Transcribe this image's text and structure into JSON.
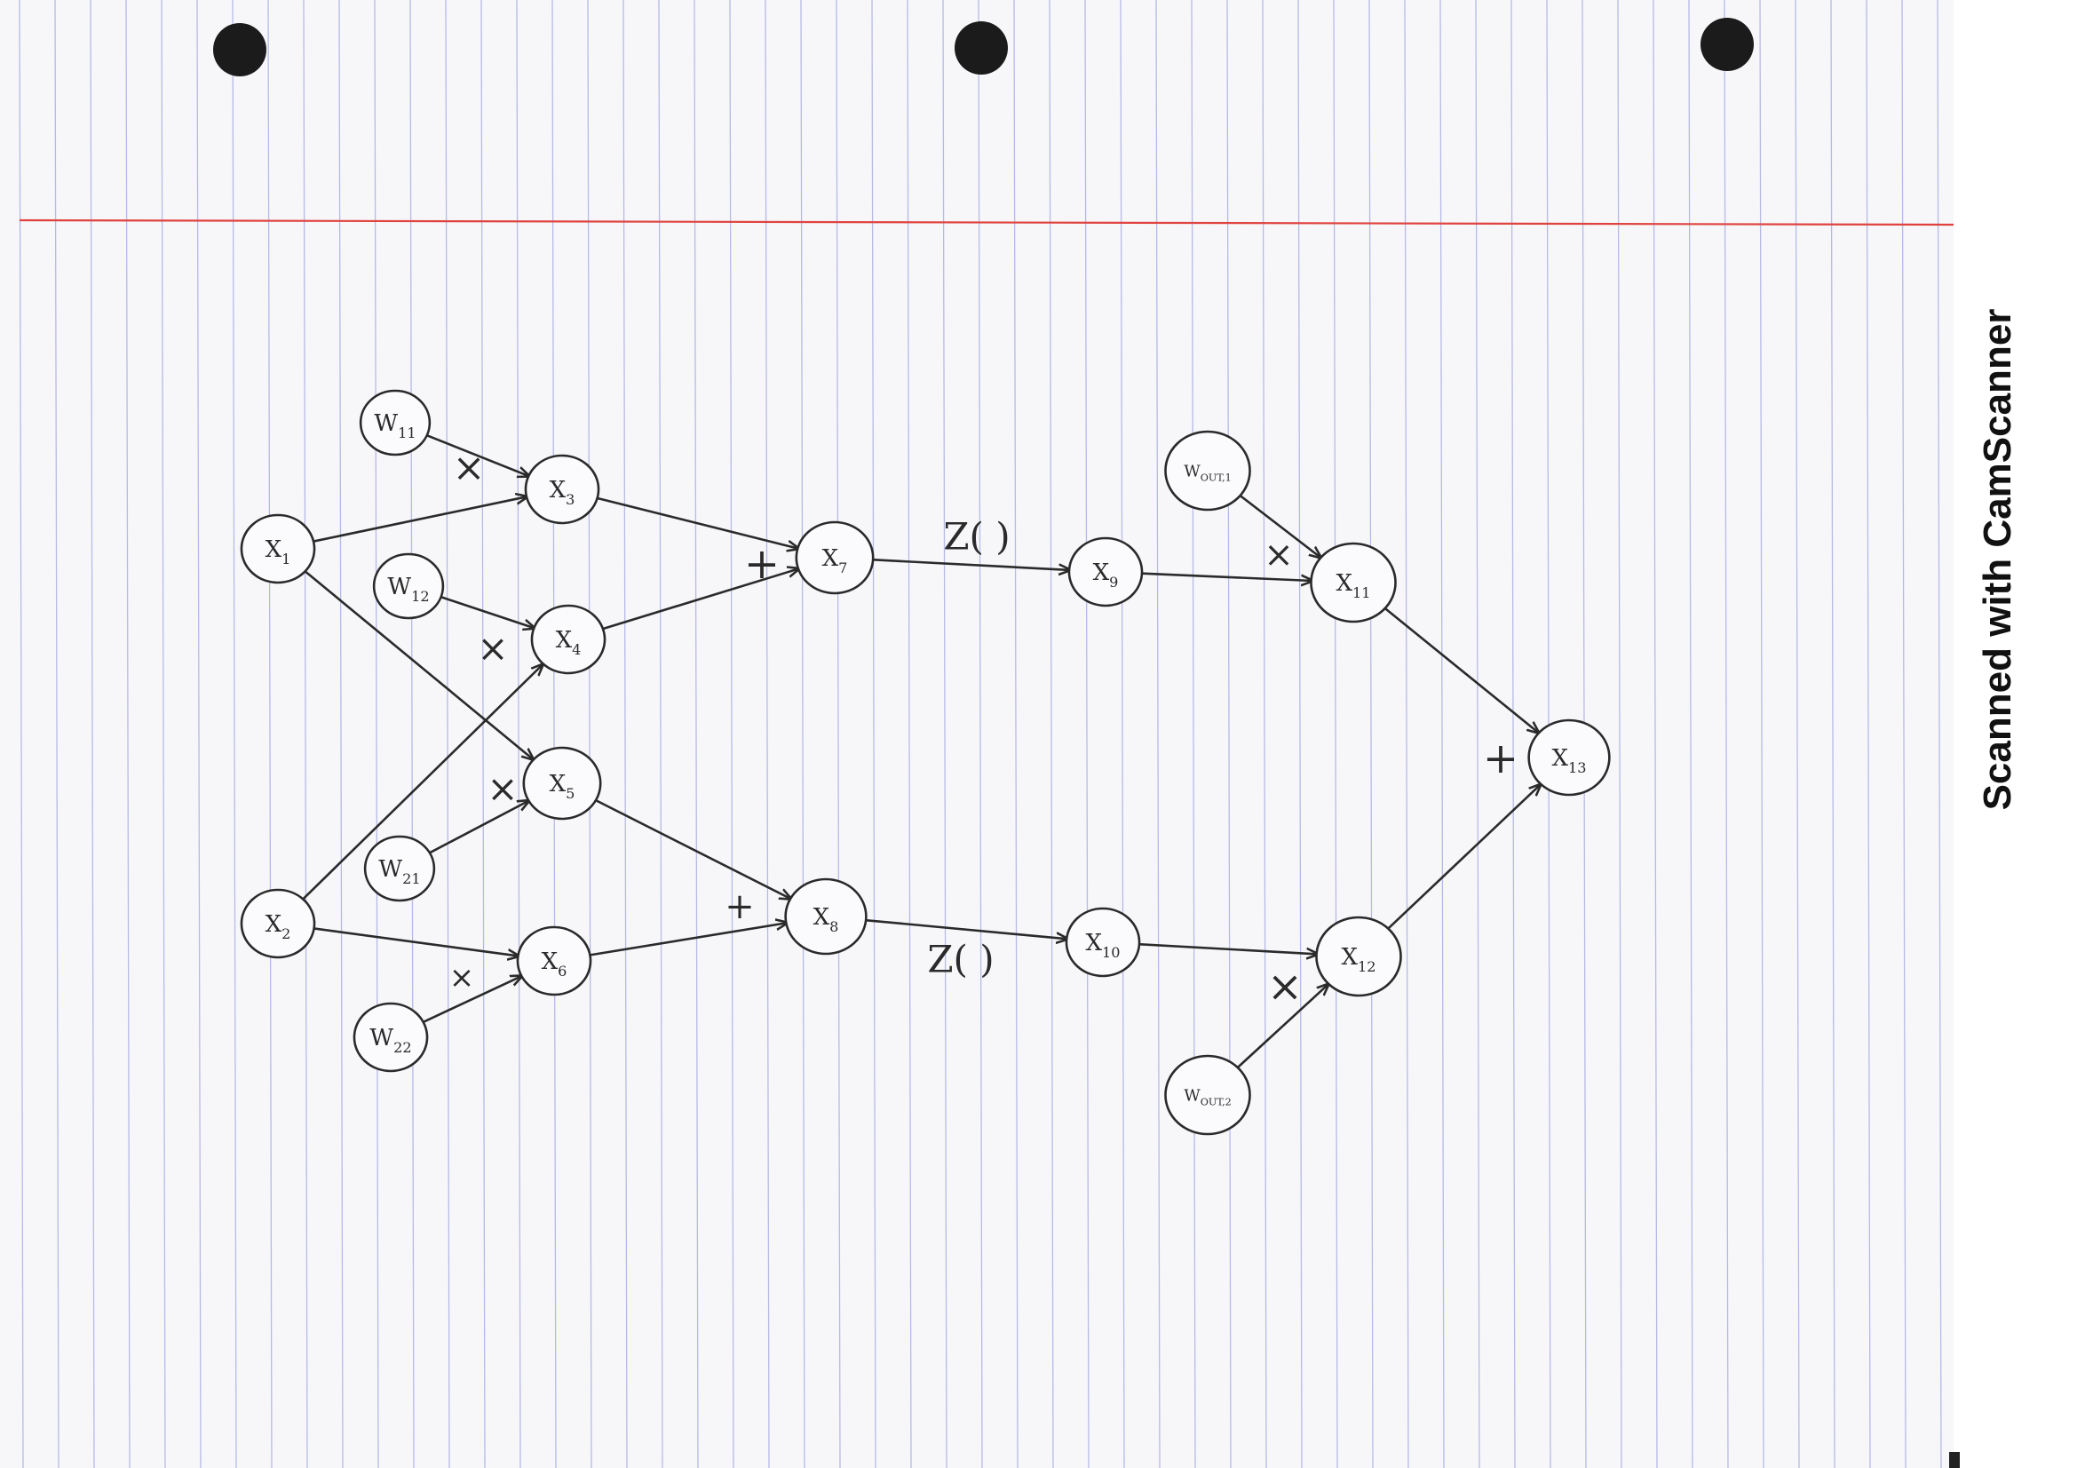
{
  "watermark": "Scanned with CamScanner",
  "colors": {
    "ink": "#2a2a2a",
    "rule_line": "#b7b9e6",
    "margin_line": "#e0433f",
    "punch_hole": "#1b1b1b"
  },
  "nodes": [
    {
      "id": "w11",
      "base": "W",
      "sub": "11"
    },
    {
      "id": "x1",
      "base": "X",
      "sub": "1"
    },
    {
      "id": "w12",
      "base": "W",
      "sub": "12"
    },
    {
      "id": "x3",
      "base": "X",
      "sub": "3"
    },
    {
      "id": "x4",
      "base": "X",
      "sub": "4"
    },
    {
      "id": "x5",
      "base": "X",
      "sub": "5"
    },
    {
      "id": "w21",
      "base": "W",
      "sub": "21"
    },
    {
      "id": "x2",
      "base": "X",
      "sub": "2"
    },
    {
      "id": "x6",
      "base": "X",
      "sub": "6"
    },
    {
      "id": "w22",
      "base": "W",
      "sub": "22"
    },
    {
      "id": "x7",
      "base": "X",
      "sub": "7"
    },
    {
      "id": "x8",
      "base": "X",
      "sub": "8"
    },
    {
      "id": "x9",
      "base": "X",
      "sub": "9"
    },
    {
      "id": "x10",
      "base": "X",
      "sub": "10"
    },
    {
      "id": "wout1",
      "base": "W",
      "sub": "OUT,1"
    },
    {
      "id": "x11",
      "base": "X",
      "sub": "11"
    },
    {
      "id": "x12",
      "base": "X",
      "sub": "12"
    },
    {
      "id": "wout2",
      "base": "W",
      "sub": "OUT,2"
    },
    {
      "id": "x13",
      "base": "X",
      "sub": "13"
    }
  ],
  "edges": [
    {
      "from": "w11",
      "to": "x3"
    },
    {
      "from": "x1",
      "to": "x3"
    },
    {
      "from": "x1",
      "to": "x5"
    },
    {
      "from": "w12",
      "to": "x4"
    },
    {
      "from": "x2",
      "to": "x4"
    },
    {
      "from": "w21",
      "to": "x5"
    },
    {
      "from": "x2",
      "to": "x6"
    },
    {
      "from": "w22",
      "to": "x6"
    },
    {
      "from": "x3",
      "to": "x7"
    },
    {
      "from": "x4",
      "to": "x7"
    },
    {
      "from": "x5",
      "to": "x8"
    },
    {
      "from": "x6",
      "to": "x8"
    },
    {
      "from": "x7",
      "to": "x9"
    },
    {
      "from": "x8",
      "to": "x10"
    },
    {
      "from": "wout1",
      "to": "x11"
    },
    {
      "from": "x9",
      "to": "x11"
    },
    {
      "from": "x10",
      "to": "x12"
    },
    {
      "from": "wout2",
      "to": "x12"
    },
    {
      "from": "x11",
      "to": "x13"
    },
    {
      "from": "x12",
      "to": "x13"
    }
  ],
  "operators": [
    {
      "id": "mul-x3",
      "text": "×"
    },
    {
      "id": "mul-x4",
      "text": "×"
    },
    {
      "id": "mul-x5",
      "text": "×"
    },
    {
      "id": "mul-x6",
      "text": "×"
    },
    {
      "id": "add-x7",
      "text": "+"
    },
    {
      "id": "add-x8",
      "text": "+"
    },
    {
      "id": "z-x9",
      "text": "Z( )"
    },
    {
      "id": "z-x10",
      "text": "Z( )"
    },
    {
      "id": "mul-x11",
      "text": "×"
    },
    {
      "id": "mul-x12",
      "text": "×"
    },
    {
      "id": "add-x13",
      "text": "+"
    }
  ]
}
